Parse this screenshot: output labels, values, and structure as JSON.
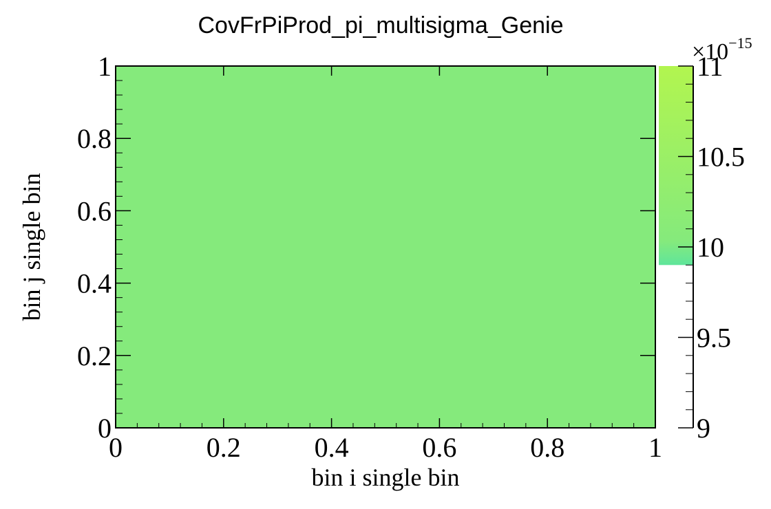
{
  "chart_data": {
    "type": "heatmap",
    "title": "CovFrPiProd_pi_multisigma_Genie",
    "xlabel": "bin i single bin",
    "ylabel": "bin j single bin",
    "xlim": [
      0,
      1
    ],
    "ylim": [
      0,
      1
    ],
    "x_ticks": [
      "0",
      "0.2",
      "0.4",
      "0.6",
      "0.8",
      "1"
    ],
    "y_ticks": [
      "0",
      "0.2",
      "0.4",
      "0.6",
      "0.8",
      "1"
    ],
    "cells": [
      {
        "x_range": [
          0,
          1
        ],
        "y_range": [
          0,
          1
        ],
        "value": 1e-14,
        "color": "#85ea7c"
      }
    ],
    "colorbar": {
      "exponent_label": "×10",
      "exponent_power": "−15",
      "range": [
        9,
        11
      ],
      "ticks": [
        "9",
        "9.5",
        "10",
        "10.5",
        "11"
      ],
      "filled_range": [
        9.9,
        11
      ],
      "color_low": "#5fe59b",
      "color_mid": "#85ea7c",
      "color_high": "#b2f54f"
    },
    "grid": false,
    "legend": "none"
  }
}
